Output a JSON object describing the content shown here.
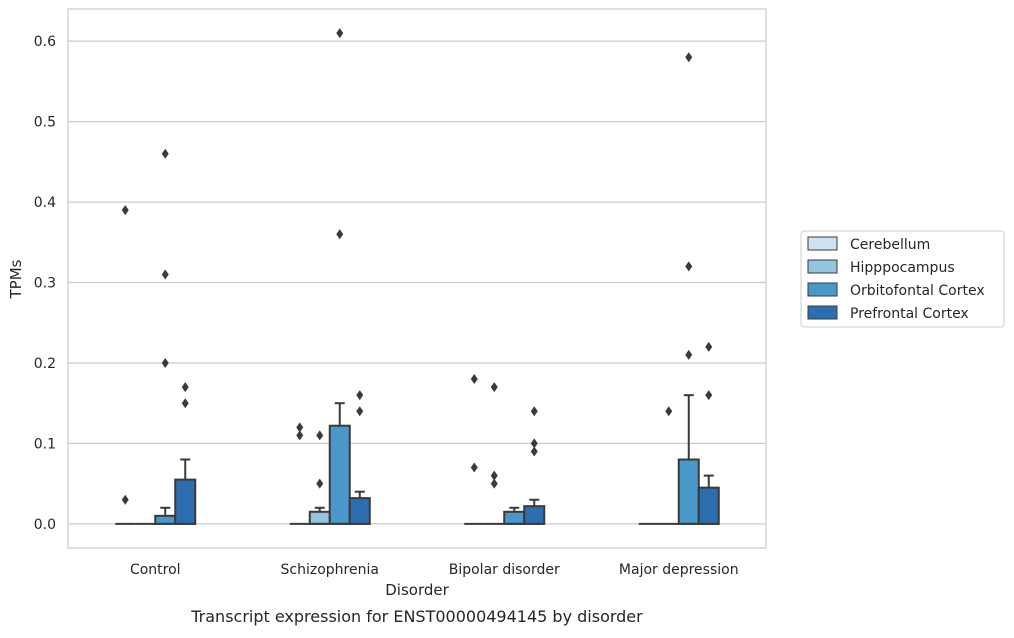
{
  "chart_data": {
    "type": "boxplot",
    "caption": "Transcript expression for ENST00000494145 by disorder",
    "xlabel": "Disorder",
    "ylabel": "TPMs",
    "ylim": [
      -0.03,
      0.64
    ],
    "yticks": [
      0.0,
      0.1,
      0.2,
      0.3,
      0.4,
      0.5,
      0.6
    ],
    "ytick_labels": [
      "0.0",
      "0.1",
      "0.2",
      "0.3",
      "0.4",
      "0.5",
      "0.6"
    ],
    "grid": "horizontal",
    "legend_position": "right",
    "categories": [
      "Control",
      "Schizophrenia",
      "Bipolar disorder",
      "Major depression"
    ],
    "series": [
      {
        "name": "Cerebellum",
        "color": "#d0e1f2",
        "boxes": [
          {
            "q1": 0,
            "median": 0,
            "q3": 0,
            "whisker_low": 0,
            "whisker_high": 0,
            "outliers": [
              0.03,
              0.39
            ]
          },
          {
            "q1": 0,
            "median": 0,
            "q3": 0,
            "whisker_low": 0,
            "whisker_high": 0,
            "outliers": [
              0.11,
              0.12
            ]
          },
          {
            "q1": 0,
            "median": 0,
            "q3": 0,
            "whisker_low": 0,
            "whisker_high": 0,
            "outliers": [
              0.07,
              0.18
            ]
          },
          {
            "q1": 0,
            "median": 0,
            "q3": 0,
            "whisker_low": 0,
            "whisker_high": 0,
            "outliers": []
          }
        ]
      },
      {
        "name": "Hipppocampus",
        "color": "#94c4df",
        "boxes": [
          {
            "q1": 0,
            "median": 0,
            "q3": 0,
            "whisker_low": 0,
            "whisker_high": 0,
            "outliers": []
          },
          {
            "q1": 0,
            "median": 0,
            "q3": 0.015,
            "whisker_low": 0,
            "whisker_high": 0.02,
            "outliers": [
              0.05,
              0.11
            ]
          },
          {
            "q1": 0,
            "median": 0,
            "q3": 0,
            "whisker_low": 0,
            "whisker_high": 0,
            "outliers": [
              0.05,
              0.06,
              0.17
            ]
          },
          {
            "q1": 0,
            "median": 0,
            "q3": 0,
            "whisker_low": 0,
            "whisker_high": 0,
            "outliers": [
              0.14
            ]
          }
        ]
      },
      {
        "name": "Orbitofontal Cortex",
        "color": "#4a98c9",
        "boxes": [
          {
            "q1": 0,
            "median": 0,
            "q3": 0.01,
            "whisker_low": 0,
            "whisker_high": 0.02,
            "outliers": [
              0.2,
              0.31,
              0.46
            ]
          },
          {
            "q1": 0,
            "median": 0,
            "q3": 0.122,
            "whisker_low": 0,
            "whisker_high": 0.15,
            "outliers": [
              0.36,
              0.61
            ]
          },
          {
            "q1": 0,
            "median": 0,
            "q3": 0.015,
            "whisker_low": 0,
            "whisker_high": 0.02,
            "outliers": []
          },
          {
            "q1": 0,
            "median": 0,
            "q3": 0.08,
            "whisker_low": 0,
            "whisker_high": 0.16,
            "outliers": [
              0.21,
              0.32,
              0.58
            ]
          }
        ]
      },
      {
        "name": "Prefrontal Cortex",
        "color": "#2c6eaf",
        "boxes": [
          {
            "q1": 0,
            "median": 0,
            "q3": 0.055,
            "whisker_low": 0,
            "whisker_high": 0.08,
            "outliers": [
              0.15,
              0.17
            ]
          },
          {
            "q1": 0,
            "median": 0,
            "q3": 0.032,
            "whisker_low": 0,
            "whisker_high": 0.04,
            "outliers": [
              0.14,
              0.16
            ]
          },
          {
            "q1": 0,
            "median": 0,
            "q3": 0.022,
            "whisker_low": 0,
            "whisker_high": 0.03,
            "outliers": [
              0.09,
              0.1,
              0.14
            ]
          },
          {
            "q1": 0,
            "median": 0,
            "q3": 0.045,
            "whisker_low": 0,
            "whisker_high": 0.06,
            "outliers": [
              0.16,
              0.22
            ]
          }
        ]
      }
    ]
  }
}
